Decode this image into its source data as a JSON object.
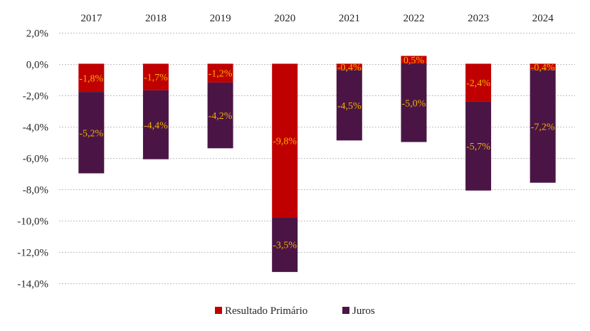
{
  "chart_data": {
    "type": "bar",
    "stacked": true,
    "categories": [
      "2017",
      "2018",
      "2019",
      "2020",
      "2021",
      "2022",
      "2023",
      "2024"
    ],
    "series": [
      {
        "name": "Resultado Primário",
        "color": "#c00000",
        "values": [
          -1.8,
          -1.7,
          -1.2,
          -9.8,
          -0.4,
          0.5,
          -2.4,
          -0.4
        ],
        "labels": [
          "-1,8%",
          "-1,7%",
          "-1,2%",
          "-9,8%",
          "-0,4%",
          "0,5%",
          "-2,4%",
          "-0,4%"
        ]
      },
      {
        "name": "Juros",
        "color": "#4a1545",
        "values": [
          -5.2,
          -4.4,
          -4.2,
          -3.5,
          -4.5,
          -5.0,
          -5.7,
          -7.2
        ],
        "labels": [
          "-5,2%",
          "-4,4%",
          "-4,2%",
          "-3,5%",
          "-4,5%",
          "-5,0%",
          "-5,7%",
          "-7,2%"
        ]
      }
    ],
    "yticks": [
      2,
      0,
      -2,
      -4,
      -6,
      -8,
      -10,
      -12,
      -14
    ],
    "ytick_labels": [
      "2,0%",
      "0,0%",
      "-2,0%",
      "-4,0%",
      "-6,0%",
      "-8,0%",
      "-10,0%",
      "-12,0%",
      "-14,0%"
    ],
    "ylim": [
      -14,
      2
    ],
    "grid": true,
    "x_axis_position": "top",
    "legend_position": "bottom",
    "label_color": "#f2b100"
  }
}
